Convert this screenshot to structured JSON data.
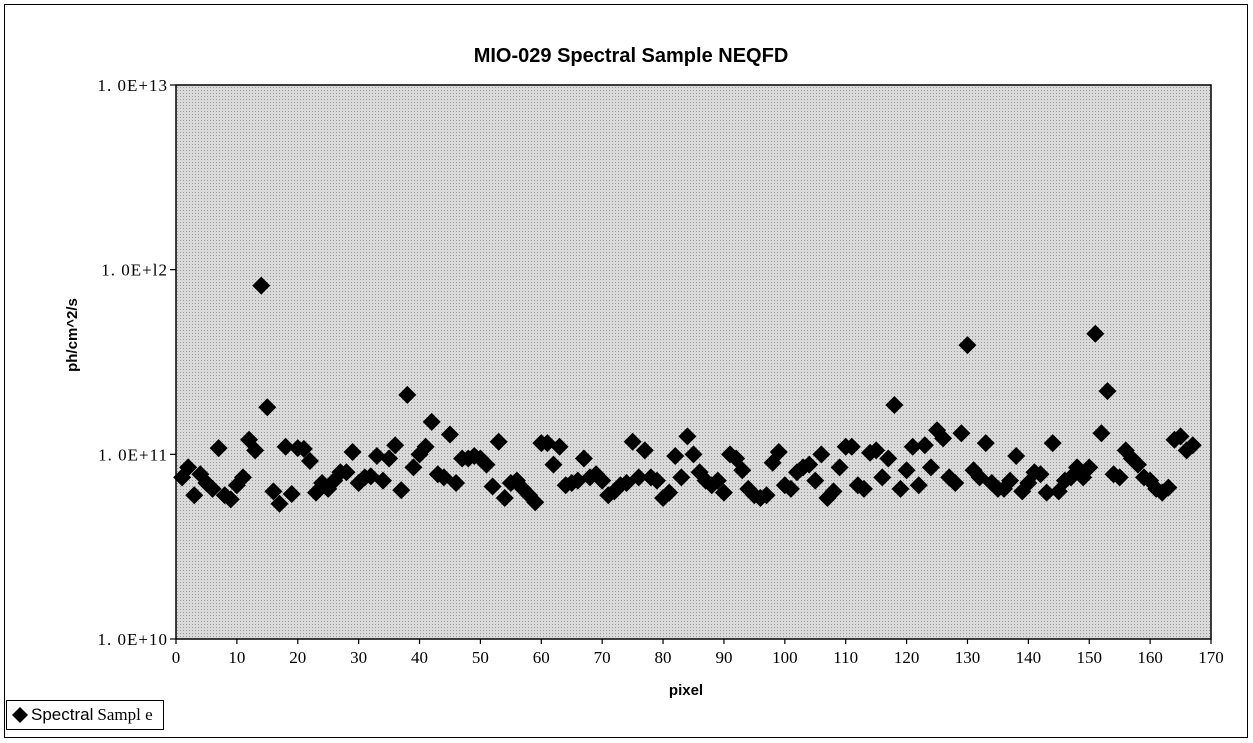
{
  "chart_data": {
    "type": "scatter",
    "title": "MIO-029  Spectral  Sample  NEQFD",
    "xlabel": "pixel",
    "ylabel": "ph/cm^2/s",
    "xlim": [
      0,
      170
    ],
    "ylim": [
      10000000000,
      10000000000000
    ],
    "yscale": "log",
    "grid": false,
    "plot_background": "#d2d2d2",
    "marker_color": "#000000",
    "marker": "diamond",
    "x_tick_labels": [
      "0",
      "10",
      "20",
      "30",
      "40",
      "50",
      "60",
      "70",
      "80",
      "90",
      "100",
      "110",
      "120",
      "130",
      "140",
      "150",
      "160",
      "170"
    ],
    "y_tick_labels": [
      "1. 0E+10",
      "1. 0E+11",
      "1. 0E+l2",
      "1. 0E+13"
    ],
    "legend_position": "bottom-left",
    "legend_label_a": "Spectral",
    "legend_label_b": "Sampl e",
    "series": [
      {
        "name": "Spectral Sample",
        "x": [
          1,
          2,
          3,
          4,
          5,
          6,
          7,
          8,
          9,
          10,
          11,
          12,
          13,
          14,
          15,
          16,
          17,
          18,
          19,
          20,
          21,
          22,
          23,
          24,
          25,
          26,
          27,
          28,
          29,
          30,
          31,
          32,
          33,
          34,
          35,
          36,
          37,
          38,
          39,
          40,
          41,
          42,
          43,
          44,
          45,
          46,
          47,
          48,
          49,
          50,
          51,
          52,
          53,
          54,
          55,
          56,
          57,
          58,
          59,
          60,
          61,
          62,
          63,
          64,
          65,
          66,
          67,
          68,
          69,
          70,
          71,
          72,
          73,
          74,
          75,
          76,
          77,
          78,
          79,
          80,
          81,
          82,
          83,
          84,
          85,
          86,
          87,
          88,
          89,
          90,
          91,
          92,
          93,
          94,
          95,
          96,
          97,
          98,
          99,
          100,
          101,
          102,
          103,
          104,
          105,
          106,
          107,
          108,
          109,
          110,
          111,
          112,
          113,
          114,
          115,
          116,
          117,
          118,
          119,
          120,
          121,
          122,
          123,
          124,
          125,
          126,
          127,
          128,
          129,
          130,
          131,
          132,
          133,
          134,
          135,
          136,
          137,
          138,
          139,
          140,
          141,
          142,
          143,
          144,
          145,
          146,
          147,
          148,
          149,
          150,
          151,
          152,
          153,
          154,
          155,
          156,
          157,
          158,
          159,
          160,
          161,
          162,
          163,
          164,
          165,
          166,
          167
        ],
        "y": [
          75000000000.0,
          85000000000.0,
          60000000000.0,
          78000000000.0,
          70000000000.0,
          65000000000.0,
          108000000000.0,
          60000000000.0,
          57000000000.0,
          68000000000.0,
          75000000000.0,
          120000000000.0,
          105000000000.0,
          820000000000.0,
          180000000000.0,
          63000000000.0,
          54000000000.0,
          110000000000.0,
          61000000000.0,
          108000000000.0,
          107000000000.0,
          92000000000.0,
          62000000000.0,
          70000000000.0,
          65000000000.0,
          72000000000.0,
          80000000000.0,
          80000000000.0,
          103000000000.0,
          70000000000.0,
          75000000000.0,
          76000000000.0,
          98000000000.0,
          72000000000.0,
          95000000000.0,
          112000000000.0,
          64000000000.0,
          210000000000.0,
          85000000000.0,
          100000000000.0,
          110000000000.0,
          150000000000.0,
          78000000000.0,
          75000000000.0,
          128000000000.0,
          70000000000.0,
          95000000000.0,
          95000000000.0,
          98000000000.0,
          95000000000.0,
          88000000000.0,
          67000000000.0,
          117000000000.0,
          58000000000.0,
          70000000000.0,
          72000000000.0,
          65000000000.0,
          60000000000.0,
          55000000000.0,
          115000000000.0,
          115000000000.0,
          88000000000.0,
          110000000000.0,
          68000000000.0,
          70000000000.0,
          72000000000.0,
          95000000000.0,
          75000000000.0,
          78000000000.0,
          72000000000.0,
          60000000000.0,
          63000000000.0,
          68000000000.0,
          70000000000.0,
          117000000000.0,
          75000000000.0,
          105000000000.0,
          75000000000.0,
          72000000000.0,
          58000000000.0,
          62000000000.0,
          98000000000.0,
          75000000000.0,
          125000000000.0,
          100000000000.0,
          80000000000.0,
          72000000000.0,
          68000000000.0,
          72000000000.0,
          62000000000.0,
          100000000000.0,
          95000000000.0,
          82000000000.0,
          65000000000.0,
          60000000000.0,
          58000000000.0,
          60000000000.0,
          90000000000.0,
          103000000000.0,
          68000000000.0,
          65000000000.0,
          80000000000.0,
          85000000000.0,
          88000000000.0,
          72000000000.0,
          100000000000.0,
          58000000000.0,
          63000000000.0,
          85000000000.0,
          110000000000.0,
          110000000000.0,
          68000000000.0,
          65000000000.0,
          102000000000.0,
          105000000000.0,
          75000000000.0,
          95000000000.0,
          185000000000.0,
          65000000000.0,
          82000000000.0,
          110000000000.0,
          68000000000.0,
          112000000000.0,
          85000000000.0,
          135000000000.0,
          122000000000.0,
          75000000000.0,
          70000000000.0,
          130000000000.0,
          390000000000.0,
          82000000000.0,
          75000000000.0,
          115000000000.0,
          70000000000.0,
          65000000000.0,
          65000000000.0,
          72000000000.0,
          98000000000.0,
          63000000000.0,
          70000000000.0,
          80000000000.0,
          78000000000.0,
          62000000000.0,
          115000000000.0,
          63000000000.0,
          72000000000.0,
          75000000000.0,
          85000000000.0,
          75000000000.0,
          85000000000.0,
          450000000000.0,
          130000000000.0,
          220000000000.0,
          78000000000.0,
          75000000000.0,
          105000000000.0,
          95000000000.0,
          88000000000.0,
          75000000000.0,
          72000000000.0,
          65000000000.0,
          62000000000.0,
          66000000000.0,
          120000000000.0,
          125000000000.0,
          105000000000.0,
          112000000000.0
        ]
      }
    ]
  }
}
